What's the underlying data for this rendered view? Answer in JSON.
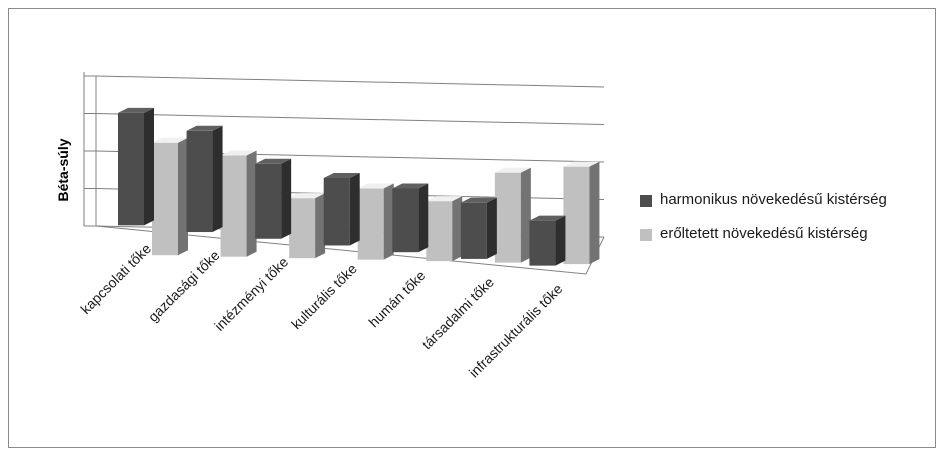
{
  "chart_data": {
    "type": "bar",
    "subtype": "3d-column-grouped",
    "categories": [
      "kapcsolati tőke",
      "gazdasági tőke",
      "intézményi tőke",
      "kulturális tőke",
      "humán tőke",
      "társadalmi tőke",
      "infrastrukturális tőke"
    ],
    "series": [
      {
        "name": "harmonikus növekedésű kistérség",
        "values": [
          3.0,
          2.7,
          2.0,
          1.8,
          1.7,
          1.5,
          1.2
        ]
      },
      {
        "name": "erőltetett növekedésű kistérség",
        "values": [
          3.0,
          2.7,
          1.6,
          1.9,
          1.6,
          2.4,
          2.6
        ]
      }
    ],
    "title": "",
    "xlabel": "",
    "ylabel": "Béta-súly",
    "ylim": [
      0,
      4
    ],
    "grid": true,
    "legend_position": "right",
    "colors": {
      "series_1": "#4d4d4d",
      "series_2": "#c0c0c0",
      "grid": "#808080"
    }
  }
}
